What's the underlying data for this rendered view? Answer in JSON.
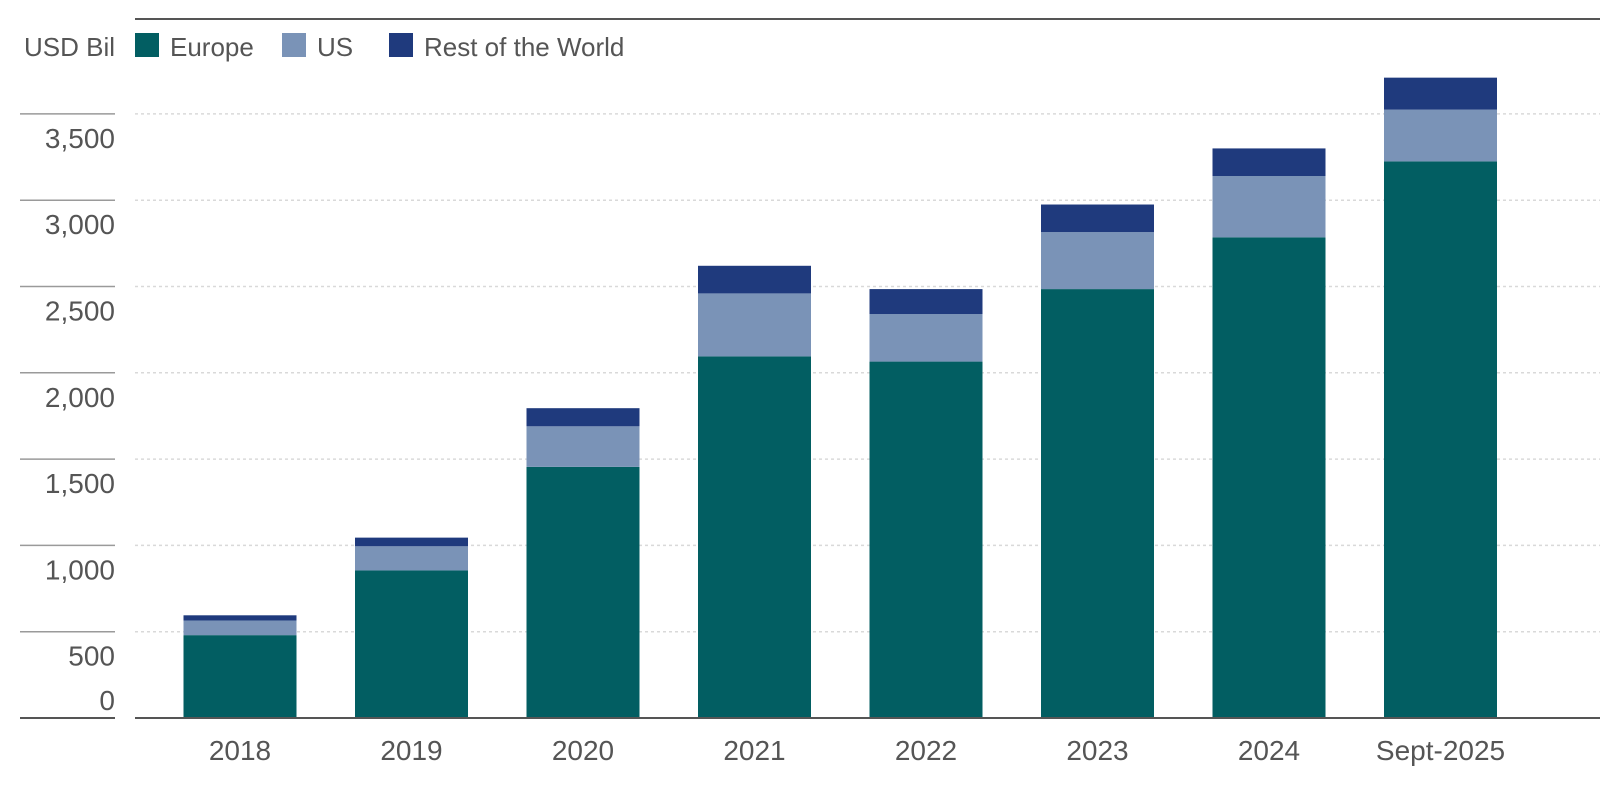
{
  "chart_data": {
    "type": "bar",
    "stacked": true,
    "unit_label": "USD Bil",
    "categories": [
      "2018",
      "2019",
      "2020",
      "2021",
      "2022",
      "2023",
      "2024",
      "Sept-2025"
    ],
    "series": [
      {
        "name": "Europe",
        "color": "#025e62",
        "values": [
          480,
          855,
          1455,
          2095,
          2065,
          2485,
          2785,
          3225
        ]
      },
      {
        "name": "US",
        "color": "#7a93b7",
        "values": [
          85,
          140,
          235,
          365,
          275,
          330,
          355,
          300
        ]
      },
      {
        "name": "Rest of the World",
        "color": "#1f3a7d",
        "values": [
          30,
          50,
          105,
          160,
          145,
          160,
          160,
          185
        ]
      }
    ],
    "y_ticks": [
      "0",
      "500",
      "1,000",
      "1,500",
      "2,000",
      "2,500",
      "3,000",
      "3,500"
    ],
    "ylim": [
      0,
      4000
    ],
    "grid": true,
    "legend_position": "top-left"
  }
}
